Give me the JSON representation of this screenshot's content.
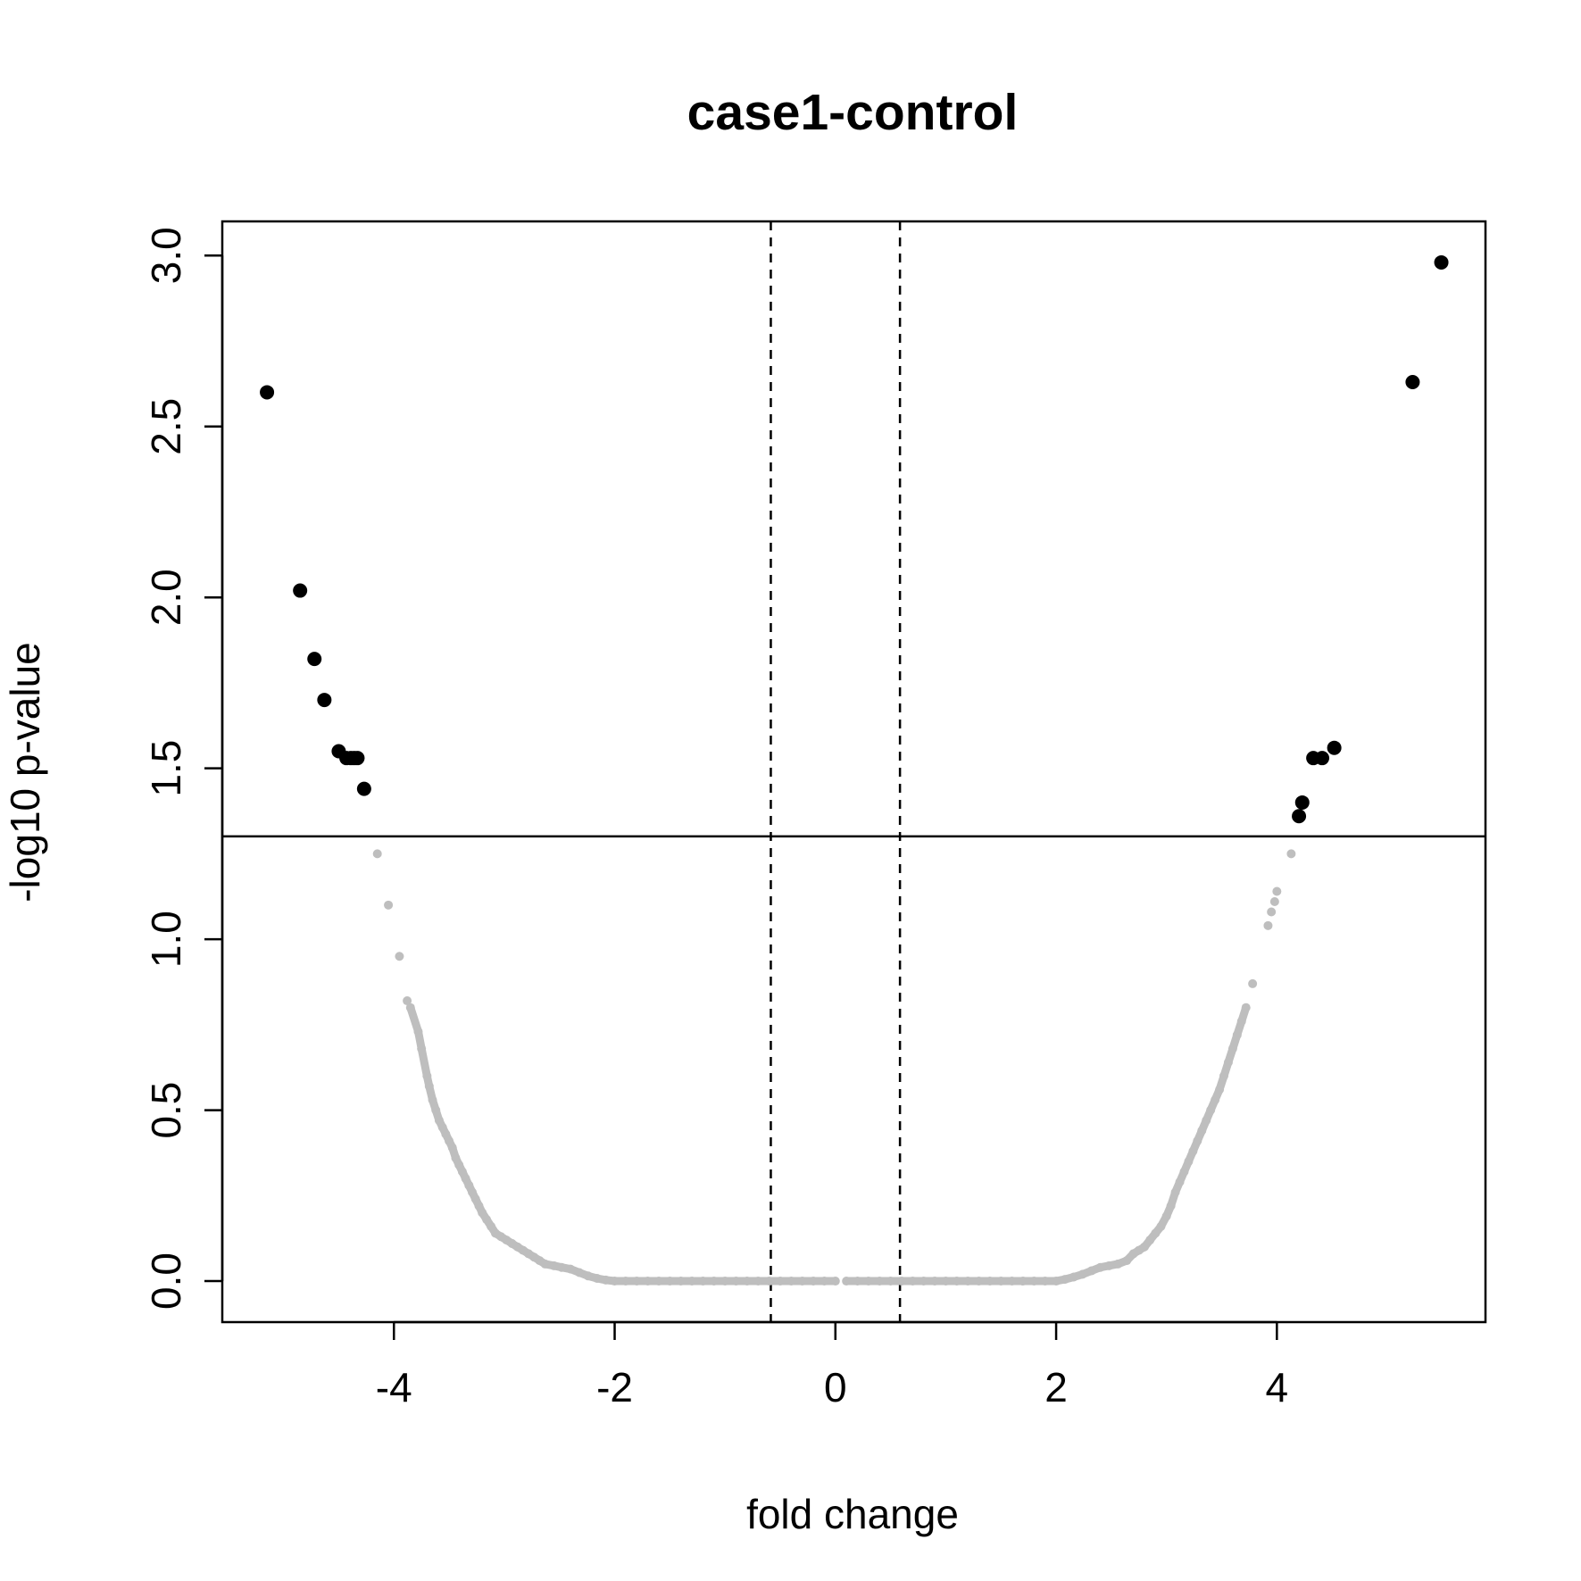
{
  "chart_data": {
    "type": "scatter",
    "title": "case1-control",
    "xlabel": "fold change",
    "ylabel": "-log10 p-value",
    "xlim": [
      -5.555,
      5.89
    ],
    "ylim": [
      -0.12,
      3.1
    ],
    "x_ticks": [
      -4,
      -2,
      0,
      2,
      4
    ],
    "y_ticks": [
      0.0,
      0.5,
      1.0,
      1.5,
      2.0,
      2.5,
      3.0
    ],
    "x_tick_labels": [
      "-4",
      "-2",
      "0",
      "2",
      "4"
    ],
    "y_tick_labels": [
      "0.0",
      "0.5",
      "1.0",
      "1.5",
      "2.0",
      "2.5",
      "3.0"
    ],
    "grid": false,
    "threshold_lines": {
      "horizontal_y": 1.301,
      "vertical_x": [
        -0.585,
        0.585
      ]
    },
    "colors": {
      "significant": "#000000",
      "not_significant": "#bebebe"
    },
    "significant_points": [
      {
        "x": -5.15,
        "y": 2.6
      },
      {
        "x": -4.85,
        "y": 2.02
      },
      {
        "x": -4.72,
        "y": 1.82
      },
      {
        "x": -4.63,
        "y": 1.7
      },
      {
        "x": -4.5,
        "y": 1.55
      },
      {
        "x": -4.43,
        "y": 1.53
      },
      {
        "x": -4.39,
        "y": 1.53
      },
      {
        "x": -4.36,
        "y": 1.53
      },
      {
        "x": -4.33,
        "y": 1.53
      },
      {
        "x": -4.27,
        "y": 1.44
      },
      {
        "x": 4.2,
        "y": 1.36
      },
      {
        "x": 4.23,
        "y": 1.4
      },
      {
        "x": 4.33,
        "y": 1.53
      },
      {
        "x": 4.41,
        "y": 1.53
      },
      {
        "x": 4.52,
        "y": 1.56
      },
      {
        "x": 5.23,
        "y": 2.63
      },
      {
        "x": 5.49,
        "y": 2.98
      }
    ],
    "nonsignificant_points": [
      {
        "x": -4.15,
        "y": 1.25
      },
      {
        "x": -4.05,
        "y": 1.1
      },
      {
        "x": -3.95,
        "y": 0.95
      },
      {
        "x": -3.88,
        "y": 0.82
      },
      {
        "x": -3.85,
        "y": 0.8
      },
      {
        "x": -3.78,
        "y": 0.73
      },
      {
        "x": -3.75,
        "y": 0.68
      },
      {
        "x": -3.7,
        "y": 0.6
      },
      {
        "x": -3.68,
        "y": 0.57
      },
      {
        "x": -3.65,
        "y": 0.53
      },
      {
        "x": -3.62,
        "y": 0.5
      },
      {
        "x": -3.59,
        "y": 0.47
      },
      {
        "x": -3.56,
        "y": 0.45
      },
      {
        "x": -3.53,
        "y": 0.43
      },
      {
        "x": -3.5,
        "y": 0.41
      },
      {
        "x": -3.47,
        "y": 0.39
      },
      {
        "x": -3.44,
        "y": 0.36
      },
      {
        "x": -3.41,
        "y": 0.34
      },
      {
        "x": -3.38,
        "y": 0.32
      },
      {
        "x": -3.35,
        "y": 0.3
      },
      {
        "x": -3.32,
        "y": 0.28
      },
      {
        "x": -3.29,
        "y": 0.26
      },
      {
        "x": -3.26,
        "y": 0.24
      },
      {
        "x": -3.23,
        "y": 0.22
      },
      {
        "x": -3.2,
        "y": 0.2
      },
      {
        "x": -3.16,
        "y": 0.18
      },
      {
        "x": -3.12,
        "y": 0.16
      },
      {
        "x": -3.08,
        "y": 0.14
      },
      {
        "x": -3.03,
        "y": 0.13
      },
      {
        "x": -2.98,
        "y": 0.12
      },
      {
        "x": -2.93,
        "y": 0.11
      },
      {
        "x": -2.88,
        "y": 0.1
      },
      {
        "x": -2.83,
        "y": 0.09
      },
      {
        "x": -2.78,
        "y": 0.08
      },
      {
        "x": -2.73,
        "y": 0.07
      },
      {
        "x": -2.68,
        "y": 0.06
      },
      {
        "x": -2.63,
        "y": 0.05
      },
      {
        "x": -2.55,
        "y": 0.045
      },
      {
        "x": -2.48,
        "y": 0.04
      },
      {
        "x": -2.4,
        "y": 0.035
      },
      {
        "x": -2.32,
        "y": 0.025
      },
      {
        "x": -2.24,
        "y": 0.015
      },
      {
        "x": -2.16,
        "y": 0.008
      },
      {
        "x": -2.08,
        "y": 0.003
      },
      {
        "x": -2.0,
        "y": 0.0
      },
      {
        "x": -1.9,
        "y": 0.0
      },
      {
        "x": -1.8,
        "y": 0.0
      },
      {
        "x": -1.7,
        "y": 0.0
      },
      {
        "x": -1.6,
        "y": 0.0
      },
      {
        "x": -1.5,
        "y": 0.0
      },
      {
        "x": -1.4,
        "y": 0.0
      },
      {
        "x": -1.3,
        "y": 0.0
      },
      {
        "x": -1.2,
        "y": 0.0
      },
      {
        "x": -1.1,
        "y": 0.0
      },
      {
        "x": -1.0,
        "y": 0.0
      },
      {
        "x": -0.9,
        "y": 0.0
      },
      {
        "x": -0.8,
        "y": 0.0
      },
      {
        "x": -0.7,
        "y": 0.0
      },
      {
        "x": -0.6,
        "y": 0.0
      },
      {
        "x": -0.5,
        "y": 0.0
      },
      {
        "x": -0.4,
        "y": 0.0
      },
      {
        "x": -0.3,
        "y": 0.0
      },
      {
        "x": -0.2,
        "y": 0.0
      },
      {
        "x": -0.1,
        "y": 0.0
      },
      {
        "x": 0.0,
        "y": 0.0
      },
      {
        "x": 0.1,
        "y": 0.0
      },
      {
        "x": 0.2,
        "y": 0.0
      },
      {
        "x": 0.3,
        "y": 0.0
      },
      {
        "x": 0.4,
        "y": 0.0
      },
      {
        "x": 0.5,
        "y": 0.0
      },
      {
        "x": 0.6,
        "y": 0.0
      },
      {
        "x": 0.7,
        "y": 0.0
      },
      {
        "x": 0.8,
        "y": 0.0
      },
      {
        "x": 0.9,
        "y": 0.0
      },
      {
        "x": 1.0,
        "y": 0.0
      },
      {
        "x": 1.1,
        "y": 0.0
      },
      {
        "x": 1.2,
        "y": 0.0
      },
      {
        "x": 1.3,
        "y": 0.0
      },
      {
        "x": 1.4,
        "y": 0.0
      },
      {
        "x": 1.5,
        "y": 0.0
      },
      {
        "x": 1.6,
        "y": 0.0
      },
      {
        "x": 1.7,
        "y": 0.0
      },
      {
        "x": 1.8,
        "y": 0.0
      },
      {
        "x": 1.9,
        "y": 0.0
      },
      {
        "x": 2.0,
        "y": 0.0
      },
      {
        "x": 2.08,
        "y": 0.005
      },
      {
        "x": 2.16,
        "y": 0.012
      },
      {
        "x": 2.24,
        "y": 0.02
      },
      {
        "x": 2.32,
        "y": 0.03
      },
      {
        "x": 2.4,
        "y": 0.04
      },
      {
        "x": 2.48,
        "y": 0.045
      },
      {
        "x": 2.56,
        "y": 0.05
      },
      {
        "x": 2.64,
        "y": 0.06
      },
      {
        "x": 2.7,
        "y": 0.08
      },
      {
        "x": 2.75,
        "y": 0.09
      },
      {
        "x": 2.8,
        "y": 0.1
      },
      {
        "x": 2.85,
        "y": 0.12
      },
      {
        "x": 2.9,
        "y": 0.14
      },
      {
        "x": 2.95,
        "y": 0.16
      },
      {
        "x": 3.0,
        "y": 0.19
      },
      {
        "x": 3.04,
        "y": 0.22
      },
      {
        "x": 3.08,
        "y": 0.26
      },
      {
        "x": 3.12,
        "y": 0.29
      },
      {
        "x": 3.16,
        "y": 0.32
      },
      {
        "x": 3.2,
        "y": 0.35
      },
      {
        "x": 3.24,
        "y": 0.38
      },
      {
        "x": 3.28,
        "y": 0.41
      },
      {
        "x": 3.32,
        "y": 0.44
      },
      {
        "x": 3.36,
        "y": 0.47
      },
      {
        "x": 3.4,
        "y": 0.5
      },
      {
        "x": 3.44,
        "y": 0.53
      },
      {
        "x": 3.48,
        "y": 0.56
      },
      {
        "x": 3.52,
        "y": 0.6
      },
      {
        "x": 3.56,
        "y": 0.64
      },
      {
        "x": 3.6,
        "y": 0.68
      },
      {
        "x": 3.64,
        "y": 0.72
      },
      {
        "x": 3.68,
        "y": 0.76
      },
      {
        "x": 3.72,
        "y": 0.8
      },
      {
        "x": 3.78,
        "y": 0.87
      },
      {
        "x": 3.92,
        "y": 1.04
      },
      {
        "x": 3.95,
        "y": 1.08
      },
      {
        "x": 3.98,
        "y": 1.11
      },
      {
        "x": 4.0,
        "y": 1.14
      },
      {
        "x": 4.13,
        "y": 1.25
      }
    ]
  }
}
